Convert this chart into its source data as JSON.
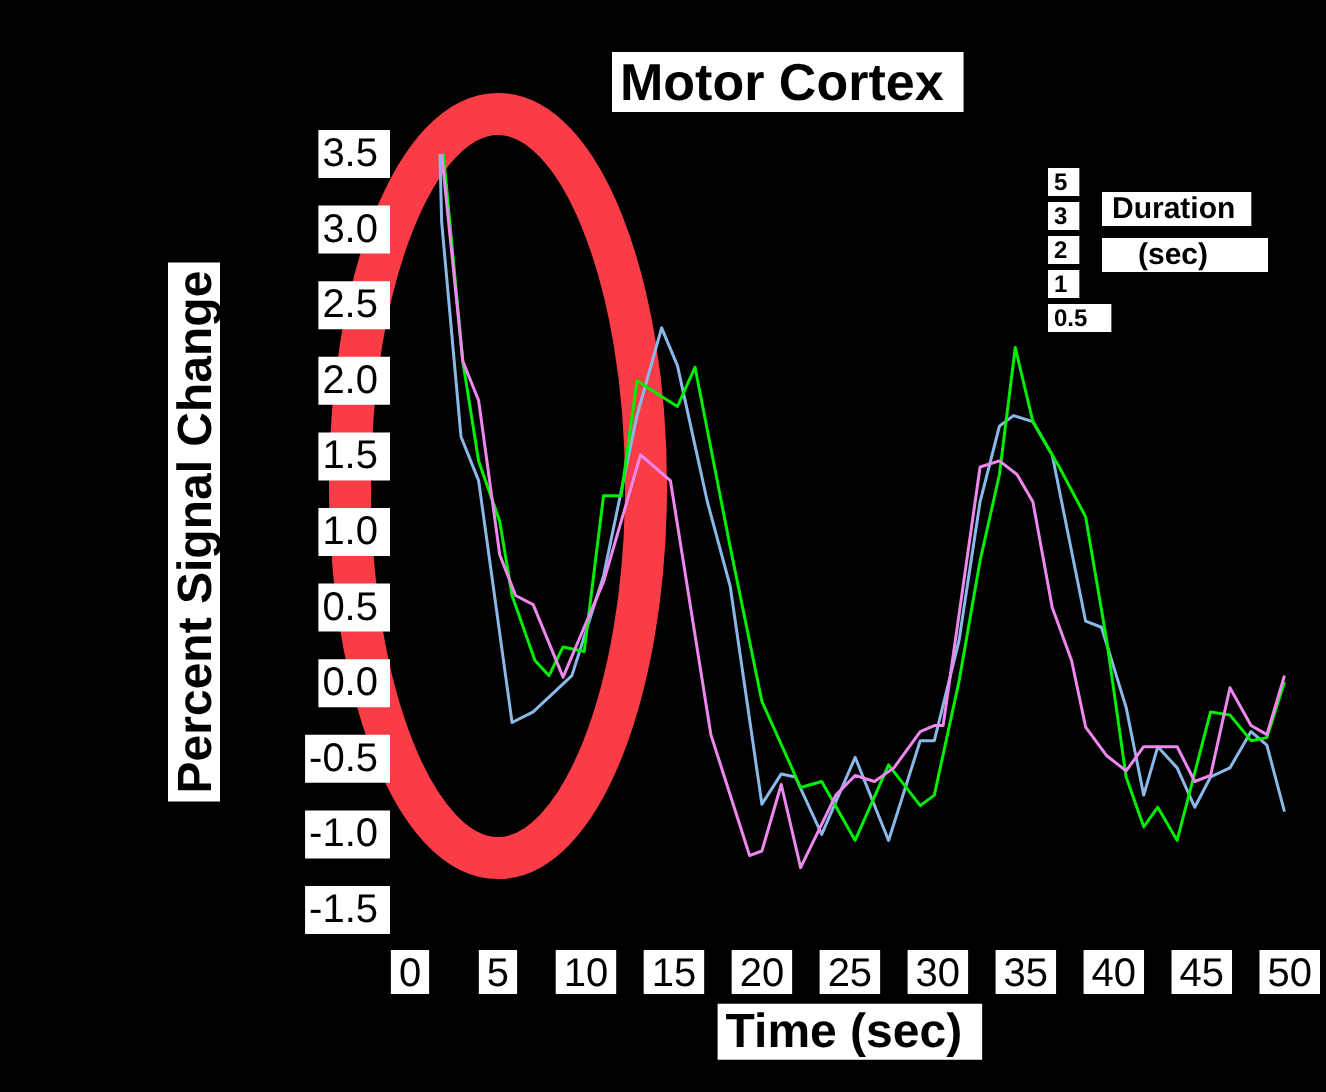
{
  "chart_data": {
    "type": "line",
    "title": "Motor Cortex",
    "xlabel": "Time (sec)",
    "ylabel": "Percent Signal Change",
    "annotations": [
      "5",
      "3",
      "2",
      "1",
      "0.5",
      "Duration",
      "(sec)"
    ],
    "xlim": [
      0,
      50
    ],
    "xticks": [
      0,
      5,
      10,
      15,
      20,
      25,
      30,
      35,
      40,
      45,
      50
    ],
    "ylim": [
      -1.5,
      3.5
    ],
    "yticks": [
      -1.5,
      {
        "value": -1,
        "label": "-1.0"
      },
      -0.5,
      {
        "value": 0,
        "label": "0.0"
      },
      0.5,
      {
        "value": 1,
        "label": "1.0"
      },
      1.5,
      {
        "value": 2,
        "label": "2.0"
      },
      2.5,
      {
        "value": 3,
        "label": "3.0"
      },
      3.5
    ],
    "grid": false,
    "marker": "none",
    "line_style": "solid",
    "series": [
      {
        "color": "#8ab8e8",
        "x": [
          1.7,
          1.8,
          2.9,
          3.9,
          5.8,
          7,
          9.2,
          11,
          12.9,
          14.3,
          15.2,
          16.9,
          18.2,
          20,
          21.1,
          21.9,
          23.4,
          25.3,
          27.2,
          29,
          29.8,
          31.2,
          32.4,
          33.5,
          34.3,
          35.4,
          36.5,
          38.4,
          39.3,
          40.7,
          41.7,
          42.5,
          43.6,
          44.6,
          45.5,
          46.6,
          47.8,
          48.7,
          49.7
        ],
        "values": [
          3.5,
          3.05,
          1.63,
          1.34,
          -0.26,
          -0.19,
          0.05,
          0.71,
          1.77,
          2.35,
          2.1,
          1.2,
          0.64,
          -0.8,
          -0.6,
          -0.62,
          -1.0,
          -0.49,
          -1.04,
          -0.38,
          -0.38,
          0.28,
          1.2,
          1.7,
          1.77,
          1.73,
          1.51,
          0.41,
          0.37,
          -0.16,
          -0.74,
          -0.42,
          -0.56,
          -0.82,
          -0.62,
          -0.56,
          -0.32,
          -0.41,
          -0.85
        ]
      },
      {
        "color": "#00ee00",
        "x": [
          1.9,
          3,
          3.9,
          5.1,
          5.8,
          7.1,
          7.9,
          8.7,
          9.9,
          11,
          12,
          12.9,
          15.2,
          16.2,
          18.2,
          20,
          22.2,
          23.4,
          25.3,
          27.2,
          29,
          29.8,
          31.2,
          32.4,
          33.5,
          34.4,
          35.4,
          36.9,
          38.4,
          39.6,
          40.7,
          41.7,
          42.5,
          43.6,
          45.5,
          46.6,
          47.8,
          48.7,
          49.7
        ],
        "values": [
          3.5,
          2.13,
          1.47,
          1.07,
          0.58,
          0.15,
          0.05,
          0.24,
          0.21,
          1.24,
          1.24,
          2.0,
          1.83,
          2.09,
          0.9,
          -0.12,
          -0.69,
          -0.65,
          -1.04,
          -0.54,
          -0.81,
          -0.74,
          0.01,
          0.81,
          1.38,
          2.22,
          1.73,
          1.43,
          1.1,
          0.28,
          -0.62,
          -0.95,
          -0.82,
          -1.04,
          -0.19,
          -0.21,
          -0.38,
          -0.36,
          0.01
        ]
      },
      {
        "color": "#ee88ee",
        "x": [
          1.8,
          3,
          3.9,
          5.1,
          6,
          7,
          8.7,
          9.9,
          11,
          13.1,
          14.8,
          17.1,
          19.3,
          20,
          21.1,
          22.2,
          24.2,
          25.3,
          26.4,
          27.5,
          29,
          29.8,
          30.3,
          31.2,
          32.4,
          33.5,
          34.5,
          35.4,
          36.5,
          37.6,
          38.4,
          39.6,
          40.7,
          41.7,
          43.6,
          44.6,
          45.5,
          46.6,
          47.8,
          48.7,
          49.7
        ],
        "values": [
          3.5,
          2.13,
          1.87,
          0.85,
          0.58,
          0.52,
          0.04,
          0.37,
          0.67,
          1.51,
          1.34,
          -0.34,
          -1.14,
          -1.11,
          -0.67,
          -1.22,
          -0.74,
          -0.61,
          -0.65,
          -0.56,
          -0.32,
          -0.28,
          -0.28,
          0.45,
          1.43,
          1.47,
          1.38,
          1.2,
          0.5,
          0.15,
          -0.29,
          -0.48,
          -0.58,
          -0.42,
          -0.42,
          -0.65,
          -0.61,
          -0.03,
          -0.28,
          -0.34,
          0.05
        ]
      }
    ]
  }
}
